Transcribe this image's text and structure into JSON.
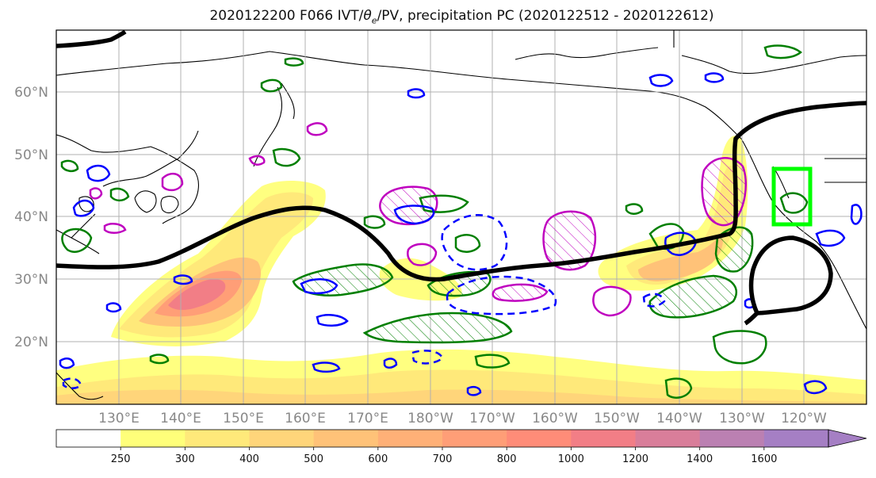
{
  "title": {
    "prefix": "2020122200 F066 IVT/",
    "theta": "θ",
    "theta_sub": "e",
    "suffix": "/PV, precipitation PC (2020122512 - 2020122612)"
  },
  "map": {
    "lat_labels": [
      "60°N",
      "50°N",
      "40°N",
      "30°N",
      "20°N"
    ],
    "lon_labels": [
      "130°E",
      "140°E",
      "150°E",
      "160°E",
      "170°E",
      "180°W",
      "170°W",
      "160°W",
      "150°W",
      "140°W",
      "130°W",
      "120°W"
    ],
    "lat_values": [
      60,
      50,
      40,
      30,
      20
    ],
    "lon_values": [
      130,
      140,
      150,
      160,
      170,
      180,
      190,
      200,
      210,
      220,
      230,
      240
    ],
    "lat_range": [
      10,
      70
    ],
    "lon_range": [
      120,
      250
    ],
    "grid": true,
    "highlight_box_color": "#00ff00"
  },
  "colorbar": {
    "levels": [
      "250",
      "300",
      "400",
      "500",
      "600",
      "700",
      "800",
      "1000",
      "1200",
      "1400",
      "1600"
    ],
    "colors": [
      "#ffffff",
      "#ffff7a",
      "#ffe97a",
      "#ffd57a",
      "#ffc278",
      "#ffb077",
      "#ff9e77",
      "#ff8c78",
      "#f27e86",
      "#d97e9a",
      "#bb80b2",
      "#a57fc4"
    ],
    "extend": "max"
  },
  "contour_colors": {
    "theta_e_line": "#000000",
    "pv_positive": "#007f00",
    "pv_negative": "#0000ff",
    "precip": "#bf00bf"
  }
}
